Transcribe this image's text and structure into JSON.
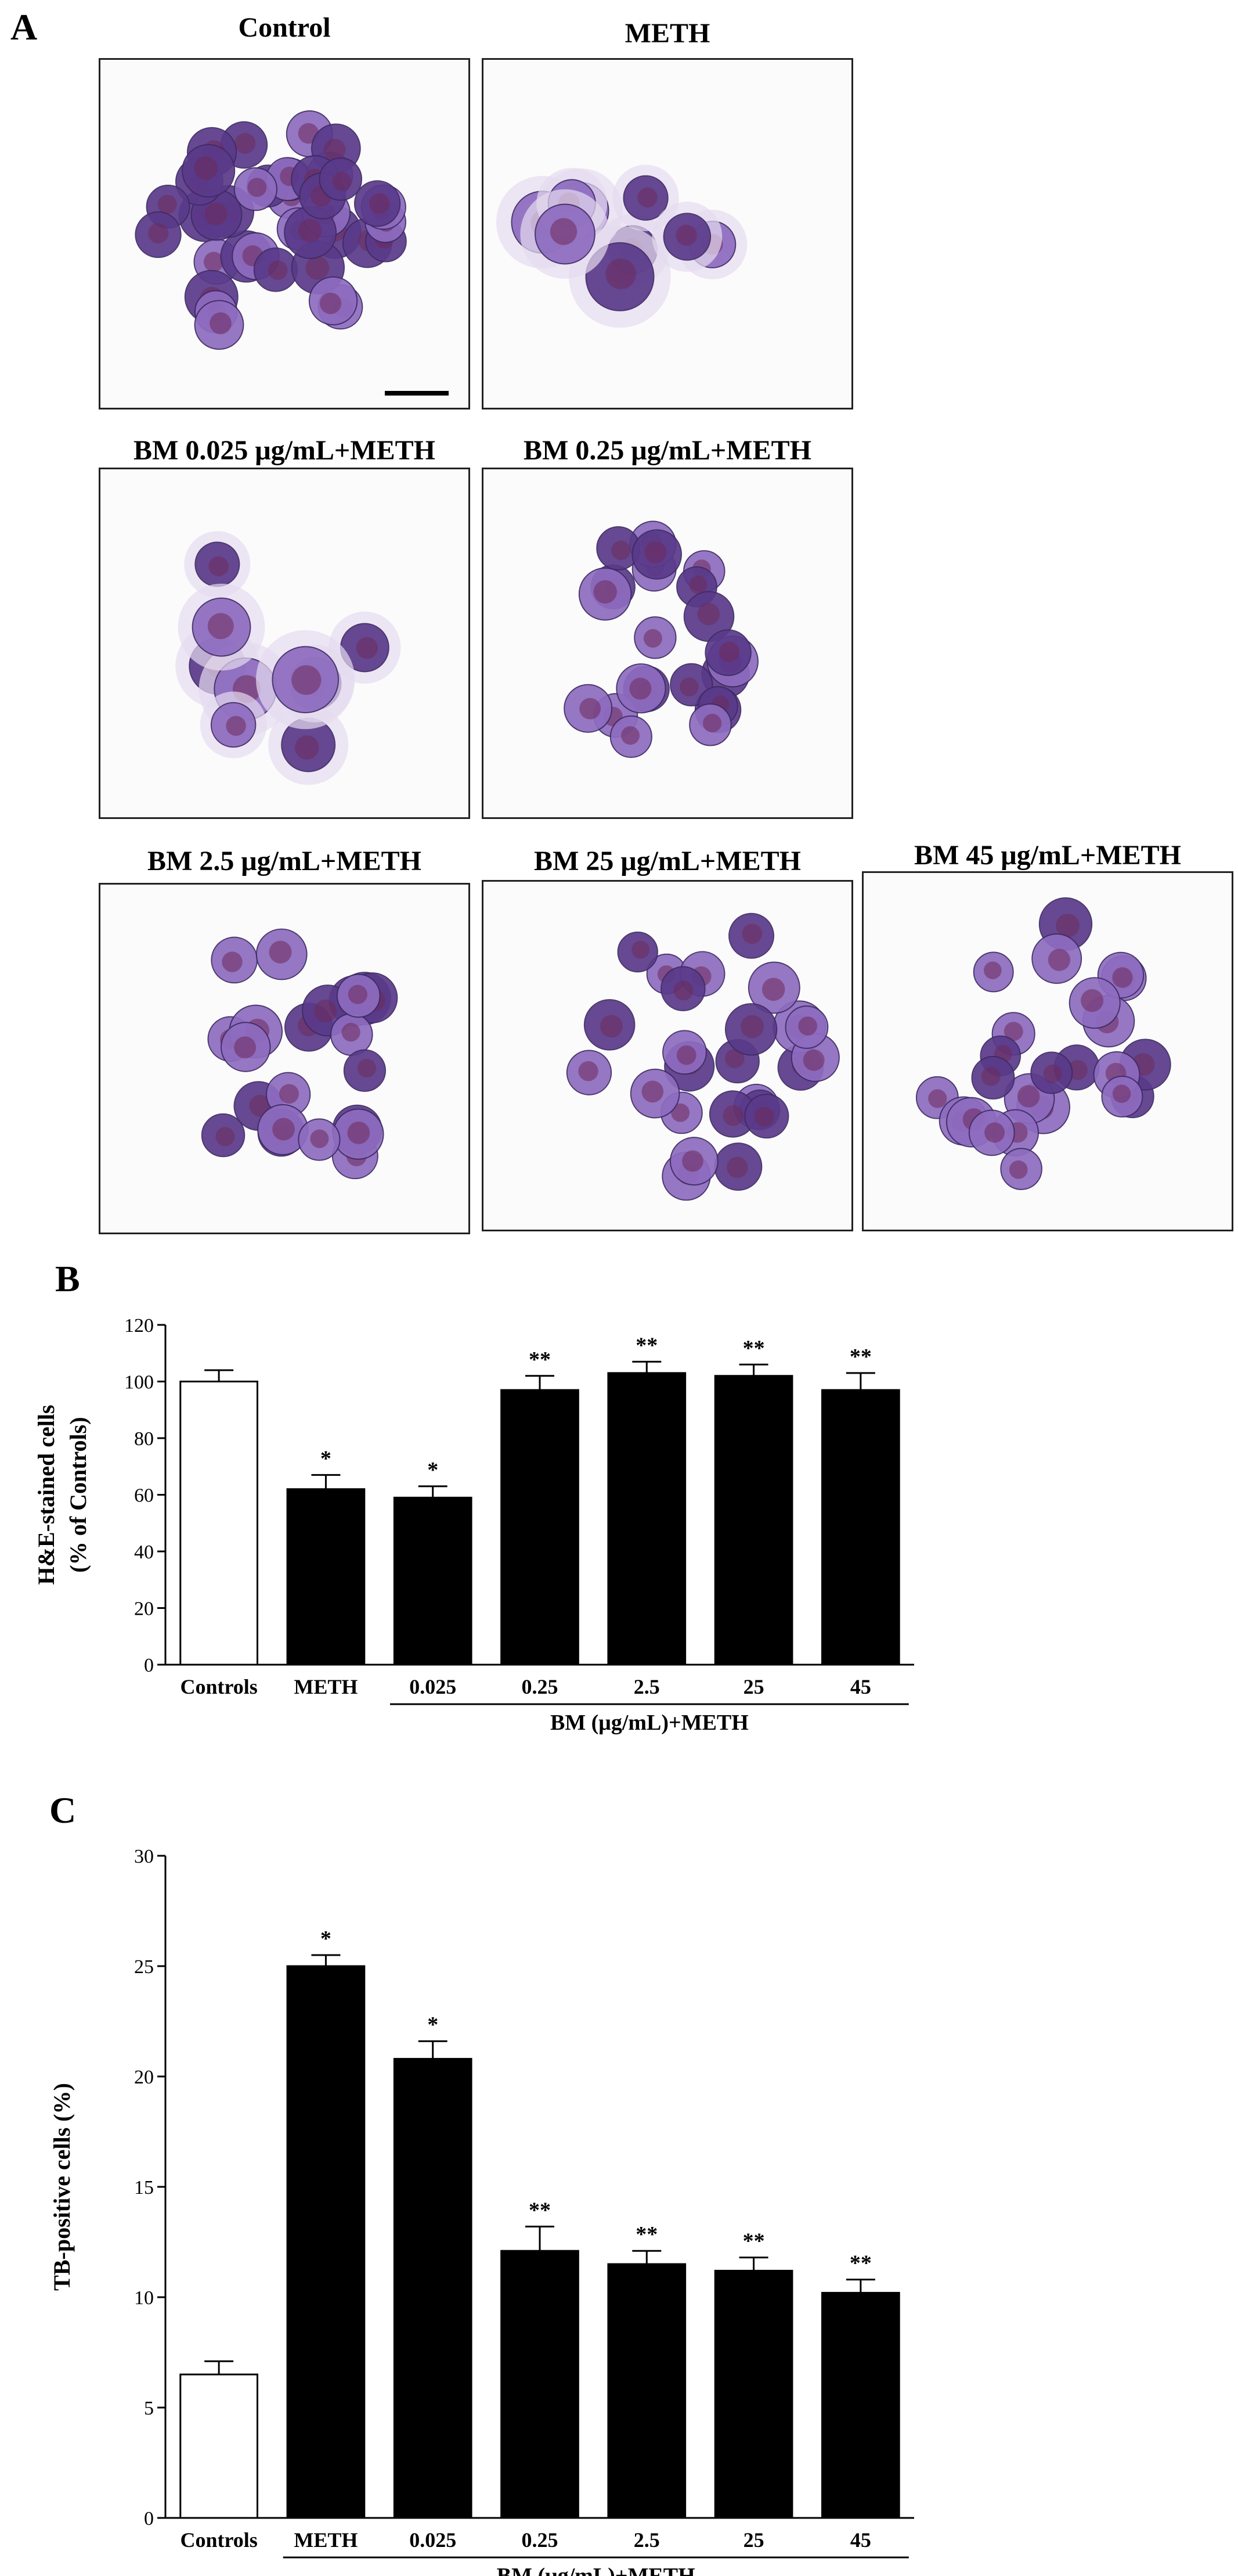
{
  "panel_a": {
    "letter": "A",
    "images": [
      {
        "title": "Control"
      },
      {
        "title": "METH"
      },
      {
        "title": "BM 0.025 μg/mL+METH"
      },
      {
        "title": "BM 0.25 μg/mL+METH"
      },
      {
        "title": "BM 2.5 μg/mL+METH"
      },
      {
        "title": "BM 25 μg/mL+METH"
      },
      {
        "title": "BM 45 μg/mL+METH"
      }
    ]
  },
  "panel_b": {
    "letter": "B"
  },
  "panel_c": {
    "letter": "C"
  },
  "colors": {
    "bar_control": "#ffffff",
    "bar_treated": "#000000",
    "cell_dark": "#5a3a8a",
    "cell_light": "#8e6cc0",
    "cell_core": "#6d2a5a"
  },
  "chart_data": [
    {
      "type": "bar",
      "title": "",
      "xlabel": "BM (μg/mL)+METH",
      "ylabel": "H&E-stained cells (% of Controls)",
      "ylabel_lines": [
        "H&E-stained cells",
        "(% of Controls)"
      ],
      "ylim": [
        0,
        120
      ],
      "yticks": [
        0,
        20,
        40,
        60,
        80,
        100,
        120
      ],
      "grid": false,
      "categories": [
        "Controls",
        "METH",
        "0.025",
        "0.25",
        "2.5",
        "25",
        "45"
      ],
      "values": [
        100,
        62,
        59,
        97,
        103,
        102,
        97
      ],
      "errors": [
        4,
        5,
        4,
        5,
        4,
        4,
        6
      ],
      "significance": [
        "",
        "*",
        "*",
        "**",
        "**",
        "**",
        "**"
      ],
      "bar_fill": [
        "#ffffff",
        "#000000",
        "#000000",
        "#000000",
        "#000000",
        "#000000",
        "#000000"
      ],
      "bracket_categories": [
        "0.025",
        "45"
      ]
    },
    {
      "type": "bar",
      "title": "",
      "xlabel": "BM (μg/mL)+METH",
      "ylabel": "TB-positive cells (%)",
      "ylabel_lines": [
        "TB-positive cells (%)"
      ],
      "ylim": [
        0,
        30
      ],
      "yticks": [
        0,
        5,
        10,
        15,
        20,
        25,
        30
      ],
      "grid": false,
      "categories": [
        "Controls",
        "METH",
        "0.025",
        "0.25",
        "2.5",
        "25",
        "45"
      ],
      "values": [
        6.5,
        25.0,
        20.8,
        12.1,
        11.5,
        11.2,
        10.2
      ],
      "errors": [
        0.6,
        0.5,
        0.8,
        1.1,
        0.6,
        0.6,
        0.6
      ],
      "significance": [
        "",
        "*",
        "*",
        "**",
        "**",
        "**",
        "**"
      ],
      "bar_fill": [
        "#ffffff",
        "#000000",
        "#000000",
        "#000000",
        "#000000",
        "#000000",
        "#000000"
      ],
      "bracket_categories": [
        "METH",
        "45"
      ]
    }
  ]
}
